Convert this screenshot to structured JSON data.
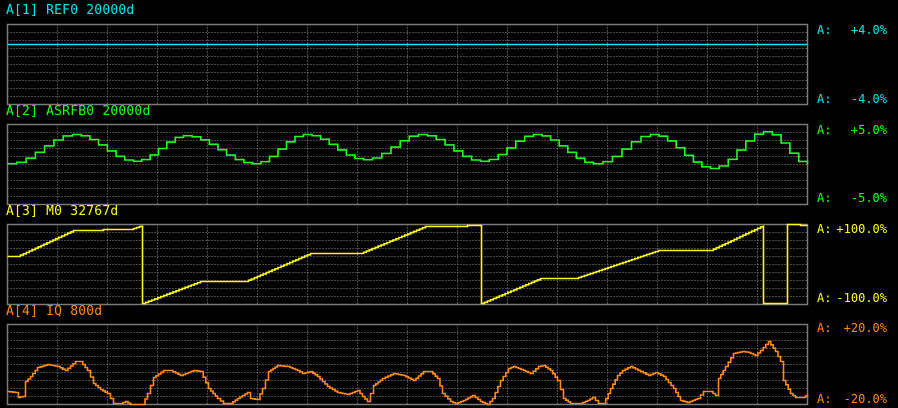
{
  "colors": {
    "background": "#000000",
    "grid": "#8c8c8c",
    "border": "#7a7a7a"
  },
  "chart_data": [
    {
      "type": "line",
      "title": "A[1] REF0 20000d",
      "color": "#00e8e8",
      "scale_label": "A:",
      "ymax_label": "+4.0%",
      "ymin_label": "-4.0%",
      "ylim": [
        -4,
        4
      ],
      "xlim": [
        0,
        16
      ],
      "grid": true,
      "interp": "linear",
      "points": [
        [
          0,
          2.0
        ],
        [
          16,
          2.0
        ]
      ]
    },
    {
      "type": "line",
      "title": "A[2] ASRFB0 20000d",
      "color": "#22ff22",
      "scale_label": "A:",
      "ymax_label": "+5.0%",
      "ymin_label": "-5.0%",
      "ylim": [
        -5,
        5
      ],
      "xlim": [
        0,
        16
      ],
      "grid": true,
      "interp": "cosine",
      "points": [
        [
          0,
          0.1
        ],
        [
          1.3,
          3.75
        ],
        [
          2.52,
          0.4
        ],
        [
          3.52,
          3.6
        ],
        [
          4.9,
          0.1
        ],
        [
          5.92,
          3.75
        ],
        [
          7.12,
          0.6
        ],
        [
          8.22,
          3.75
        ],
        [
          9.46,
          0.4
        ],
        [
          10.52,
          3.75
        ],
        [
          11.72,
          0.1
        ],
        [
          12.86,
          3.75
        ],
        [
          14.06,
          -0.5
        ],
        [
          15.12,
          4.1
        ],
        [
          16,
          0.0
        ]
      ]
    },
    {
      "type": "line",
      "title": "A[3] M0 32767d",
      "color": "#ffff1a",
      "scale_label": "A:",
      "ymax_label": "+100.0%",
      "ymin_label": "-100.0%",
      "ylim": [
        -100,
        100
      ],
      "xlim": [
        0,
        16
      ],
      "grid": true,
      "interp": "linear",
      "points": [
        [
          0,
          20
        ],
        [
          0.2,
          20
        ],
        [
          1.32,
          85
        ],
        [
          1.92,
          85
        ],
        [
          1.92,
          87.5
        ],
        [
          2.46,
          87.5
        ],
        [
          2.7,
          97.5
        ],
        [
          2.7,
          -97.5
        ],
        [
          3.86,
          -42.5
        ],
        [
          4.76,
          -42.5
        ],
        [
          6.06,
          27.5
        ],
        [
          7.06,
          27.5
        ],
        [
          8.36,
          95
        ],
        [
          9.2,
          95
        ],
        [
          9.2,
          97.5
        ],
        [
          9.48,
          97.5
        ],
        [
          9.48,
          -97.5
        ],
        [
          10.66,
          -35
        ],
        [
          11.36,
          -35
        ],
        [
          13.02,
          35
        ],
        [
          14.06,
          35
        ],
        [
          15.12,
          97.5
        ],
        [
          15.12,
          -97.5
        ],
        [
          15.6,
          -97.5
        ],
        [
          15.6,
          100
        ],
        [
          15.86,
          100
        ],
        [
          15.86,
          97.5
        ],
        [
          16,
          97.5
        ]
      ]
    },
    {
      "type": "line",
      "title": "A[4] IQ 800d",
      "color": "#ff8c1a",
      "scale_label": "A:",
      "ymax_label": "+20.0%",
      "ymin_label": "-20.0%",
      "ylim": [
        -20,
        20
      ],
      "xlim": [
        0,
        16
      ],
      "grid": true,
      "interp": "linear",
      "points": [
        [
          0,
          -13.5
        ],
        [
          0.16,
          -14
        ],
        [
          0.22,
          -16.5
        ],
        [
          0.3,
          -16
        ],
        [
          0.36,
          -8.5
        ],
        [
          0.46,
          -6
        ],
        [
          0.6,
          -1.5
        ],
        [
          0.8,
          0
        ],
        [
          1.0,
          -1
        ],
        [
          1.16,
          -3
        ],
        [
          1.36,
          1.5
        ],
        [
          1.46,
          1.5
        ],
        [
          1.6,
          -3
        ],
        [
          1.72,
          -9.5
        ],
        [
          1.86,
          -12.5
        ],
        [
          2.0,
          -14.5
        ],
        [
          2.12,
          -19.5
        ],
        [
          2.26,
          -19.5
        ],
        [
          2.36,
          -18.5
        ],
        [
          2.46,
          -20
        ],
        [
          2.7,
          -20
        ],
        [
          2.8,
          -14.5
        ],
        [
          2.92,
          -6.5
        ],
        [
          3.12,
          -3
        ],
        [
          3.26,
          -3
        ],
        [
          3.46,
          -5.5
        ],
        [
          3.72,
          -3
        ],
        [
          3.86,
          -3.5
        ],
        [
          4.02,
          -12
        ],
        [
          4.2,
          -17
        ],
        [
          4.32,
          -19.5
        ],
        [
          4.46,
          -19.5
        ],
        [
          4.6,
          -17
        ],
        [
          4.8,
          -14
        ],
        [
          4.86,
          -17
        ],
        [
          5.0,
          -17.5
        ],
        [
          5.1,
          -12
        ],
        [
          5.22,
          -3.5
        ],
        [
          5.4,
          -0.5
        ],
        [
          5.6,
          -1
        ],
        [
          5.8,
          -3
        ],
        [
          5.9,
          -4.5
        ],
        [
          6.06,
          -3.5
        ],
        [
          6.2,
          -6
        ],
        [
          6.4,
          -11
        ],
        [
          6.6,
          -14
        ],
        [
          6.8,
          -15
        ],
        [
          7.0,
          -13
        ],
        [
          7.1,
          -16
        ],
        [
          7.2,
          -18.5
        ],
        [
          7.32,
          -10.5
        ],
        [
          7.5,
          -7
        ],
        [
          7.72,
          -4.5
        ],
        [
          7.92,
          -5.5
        ],
        [
          8.12,
          -8
        ],
        [
          8.32,
          -3.5
        ],
        [
          8.46,
          -3.5
        ],
        [
          8.6,
          -7
        ],
        [
          8.7,
          -14.5
        ],
        [
          8.86,
          -18.5
        ],
        [
          8.96,
          -19.5
        ],
        [
          9.12,
          -18
        ],
        [
          9.3,
          -15.5
        ],
        [
          9.46,
          -18.5
        ],
        [
          9.6,
          -20
        ],
        [
          9.7,
          -17
        ],
        [
          9.86,
          -8
        ],
        [
          10.02,
          -2
        ],
        [
          10.12,
          -1
        ],
        [
          10.32,
          -3
        ],
        [
          10.46,
          -4.5
        ],
        [
          10.62,
          -1
        ],
        [
          10.72,
          -0.5
        ],
        [
          10.86,
          -3
        ],
        [
          11.0,
          -8
        ],
        [
          11.12,
          -17
        ],
        [
          11.26,
          -19.5
        ],
        [
          11.46,
          -19.5
        ],
        [
          11.6,
          -18
        ],
        [
          11.7,
          -16.5
        ],
        [
          11.82,
          -19.5
        ],
        [
          11.92,
          -19.5
        ],
        [
          12.06,
          -12
        ],
        [
          12.2,
          -5.5
        ],
        [
          12.3,
          -3
        ],
        [
          12.46,
          -1
        ],
        [
          12.66,
          -3.5
        ],
        [
          12.82,
          -5.5
        ],
        [
          12.96,
          -4
        ],
        [
          13.12,
          -6
        ],
        [
          13.32,
          -12
        ],
        [
          13.46,
          -18
        ],
        [
          13.6,
          -19
        ],
        [
          13.8,
          -17
        ],
        [
          13.92,
          -13.5
        ],
        [
          14.06,
          -13.5
        ],
        [
          14.16,
          -15.5
        ],
        [
          14.22,
          -7
        ],
        [
          14.36,
          -1
        ],
        [
          14.52,
          5.5
        ],
        [
          14.7,
          6.5
        ],
        [
          14.82,
          6
        ],
        [
          14.96,
          4.5
        ],
        [
          15.06,
          7
        ],
        [
          15.22,
          11.5
        ],
        [
          15.36,
          6.5
        ],
        [
          15.46,
          1.5
        ],
        [
          15.52,
          -8
        ],
        [
          15.66,
          -14.5
        ],
        [
          15.76,
          -16.5
        ],
        [
          15.92,
          -16.5
        ],
        [
          16,
          -15
        ]
      ]
    }
  ]
}
